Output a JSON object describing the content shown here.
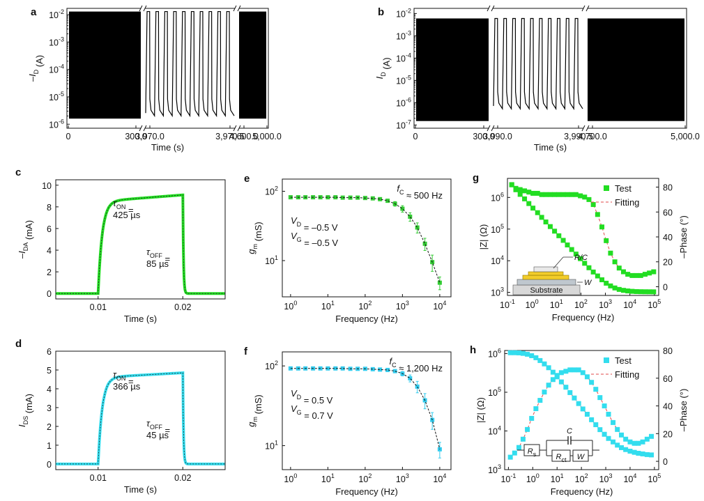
{
  "chart_data": [
    {
      "id": "a",
      "type": "line",
      "panel_label": "a",
      "xlabel": "Time (s)",
      "ylabel_main": "–I",
      "ylabel_sub": "D",
      "ylabel_unit": " (A)",
      "yscale": "log",
      "ylim": [
        1e-06,
        0.01
      ],
      "ytick_bases": [
        "10",
        "10",
        "10",
        "10",
        "10"
      ],
      "ytick_exps": [
        "-6",
        "-5",
        "-4",
        "-3",
        "-2"
      ],
      "segments": [
        {
          "kind": "dense",
          "xticks": [
            "0",
            "300.0"
          ],
          "x_range": [
            0,
            400
          ],
          "high": 0.013,
          "low": 1.6e-06
        },
        {
          "kind": "pulses",
          "xticks": [
            "3,970.0",
            "3,970.5"
          ],
          "x_range": [
            3969.9,
            3970.75
          ],
          "pulse_count": 10,
          "high": 0.013,
          "low": 1.6e-06
        },
        {
          "kind": "dense",
          "xticks": [
            "4,600.0",
            "5,000.0"
          ],
          "x_range": [
            4560,
            5040
          ],
          "high": 0.013,
          "low": 1.6e-06
        }
      ]
    },
    {
      "id": "b",
      "type": "line",
      "panel_label": "b",
      "xlabel": "Time (s)",
      "ylabel_main": "I",
      "ylabel_sub": "D",
      "ylabel_unit": " (A)",
      "yscale": "log",
      "ylim": [
        1e-07,
        0.01
      ],
      "ytick_bases": [
        "10",
        "10",
        "10",
        "10",
        "10",
        "10"
      ],
      "ytick_exps": [
        "-7",
        "-6",
        "-5",
        "-4",
        "-3",
        "-2"
      ],
      "segments": [
        {
          "kind": "dense",
          "xticks": [
            "0",
            "300.0"
          ],
          "x_range": [
            0,
            400
          ],
          "high": 0.006,
          "low": 1.5e-07
        },
        {
          "kind": "pulses",
          "xticks": [
            "3,990.0",
            "3,990.5"
          ],
          "x_range": [
            3989.9,
            3990.75
          ],
          "pulse_count": 10,
          "high": 0.006,
          "low": 4e-07
        },
        {
          "kind": "dense",
          "xticks": [
            "4,700.0",
            "5,000.0"
          ],
          "x_range": [
            4600,
            5040
          ],
          "high": 0.006,
          "low": 1.5e-07
        }
      ]
    },
    {
      "id": "c",
      "type": "line",
      "panel_label": "c",
      "xlabel": "Time (s)",
      "ylabel_main": "–I",
      "ylabel_sub": "DA",
      "ylabel_unit": " (mA)",
      "xlim": [
        0.005,
        0.025
      ],
      "ylim": [
        -0.5,
        10.5
      ],
      "xticks": [
        0.01,
        0.02
      ],
      "xtick_labels": [
        "0.01",
        "0.02"
      ],
      "yticks": [
        0,
        2,
        4,
        6,
        8,
        10
      ],
      "ytick_labels": [
        "0",
        "2",
        "4",
        "6",
        "8",
        "10"
      ],
      "color": "#22dd22",
      "pulse": {
        "t_on": 0.01,
        "t_off": 0.02,
        "plateau_start": 8.5,
        "plateau_end": 9.1,
        "baseline": 0
      },
      "tau_on_label": "τ",
      "tau_on_sub": "ON",
      "tau_on_value": "425 µs",
      "tau_off_label": "τ",
      "tau_off_sub": "OFF",
      "tau_off_value": "85 µs",
      "equals": " ="
    },
    {
      "id": "d",
      "type": "line",
      "panel_label": "d",
      "xlabel": "Time (s)",
      "ylabel_main": "I",
      "ylabel_sub": "DS",
      "ylabel_unit": " (mA)",
      "xlim": [
        0.005,
        0.025
      ],
      "ylim": [
        -0.3,
        6
      ],
      "xticks": [
        0.01,
        0.02
      ],
      "xtick_labels": [
        "0.01",
        "0.02"
      ],
      "yticks": [
        0,
        1,
        2,
        3,
        4,
        5,
        6
      ],
      "ytick_labels": [
        "0",
        "1",
        "2",
        "3",
        "4",
        "5",
        "6"
      ],
      "color": "#33ddee",
      "pulse": {
        "t_on": 0.01,
        "t_off": 0.02,
        "plateau_start": 4.6,
        "plateau_end": 4.85,
        "baseline": 0
      },
      "tau_on_label": "τ",
      "tau_on_sub": "ON",
      "tau_on_value": "366 µs",
      "tau_off_label": "τ",
      "tau_off_sub": "OFF",
      "tau_off_value": "45 µs",
      "equals": " ="
    },
    {
      "id": "e",
      "type": "scatter",
      "panel_label": "e",
      "xlabel": "Frequency (Hz)",
      "ylabel_main": "g",
      "ylabel_sub": "m",
      "ylabel_unit": " (mS)",
      "xscale": "log",
      "yscale": "log",
      "xlim": [
        0.6,
        20000
      ],
      "ylim": [
        3,
        150
      ],
      "xtick_exps": [
        "0",
        "1",
        "2",
        "3",
        "4"
      ],
      "ytick_exps": [
        "1",
        "2"
      ],
      "color": "#33cc33",
      "x": [
        1,
        1.6,
        2.5,
        4,
        6.3,
        10,
        16,
        25,
        40,
        63,
        100,
        160,
        250,
        400,
        630,
        1000,
        1600,
        2500,
        4000,
        6300,
        10000
      ],
      "y": [
        82,
        82,
        82,
        82,
        82,
        82,
        82,
        81,
        81,
        81,
        80,
        79,
        77,
        73,
        66,
        56,
        43,
        30,
        17.5,
        9.5,
        4.8
      ],
      "err": [
        3,
        3,
        3,
        3,
        3,
        3,
        3,
        3,
        3,
        3,
        3,
        3,
        4,
        4,
        5,
        6,
        6,
        5,
        3.5,
        2.5,
        1
      ],
      "annotations": {
        "fc_main": "f",
        "fc_sub": "C",
        "fc_value": " ≈ 500 Hz",
        "vd_main": "V",
        "vd_sub": "D",
        "vd_value": " = –0.5 V",
        "vg_main": "V",
        "vg_sub": "G",
        "vg_value": " = –0.5 V"
      }
    },
    {
      "id": "f",
      "type": "scatter",
      "panel_label": "f",
      "xlabel": "Frequency (Hz)",
      "ylabel_main": "g",
      "ylabel_sub": "m",
      "ylabel_unit": " (mS)",
      "xscale": "log",
      "yscale": "log",
      "xlim": [
        0.6,
        20000
      ],
      "ylim": [
        5,
        150
      ],
      "xtick_exps": [
        "0",
        "1",
        "2",
        "3",
        "4"
      ],
      "ytick_exps": [
        "1",
        "2"
      ],
      "color": "#33ccee",
      "x": [
        1,
        1.6,
        2.5,
        4,
        6.3,
        10,
        16,
        25,
        40,
        63,
        100,
        160,
        250,
        400,
        630,
        1000,
        1600,
        2500,
        4000,
        6300,
        10000
      ],
      "y": [
        93,
        93,
        93,
        93,
        93,
        93,
        93,
        93,
        92,
        92,
        92,
        91,
        90,
        89,
        86,
        80,
        70,
        55,
        37,
        21,
        9
      ],
      "err": [
        3,
        3,
        3,
        3,
        3,
        3,
        3,
        3,
        3,
        3,
        3,
        3,
        3,
        4,
        4,
        5,
        7,
        9,
        8,
        5,
        2
      ],
      "annotations": {
        "fc_main": "f",
        "fc_sub": "C",
        "fc_value": " ≈ 1,200 Hz",
        "vd_main": "V",
        "vd_sub": "D",
        "vd_value": " = 0.5 V",
        "vg_main": "V",
        "vg_sub": "G",
        "vg_value": " = 0.7 V"
      }
    },
    {
      "id": "g",
      "type": "scatter",
      "panel_label": "g",
      "xlabel": "Frequency (Hz)",
      "ylabel": "|Z| (Ω)",
      "y2label": "–Phase (°)",
      "xscale": "log",
      "yscale": "log",
      "xlim": [
        0.1,
        150000
      ],
      "ylim": [
        800,
        4000000
      ],
      "y2lim": [
        -7,
        87
      ],
      "xtick_exps": [
        "-1",
        "0",
        "1",
        "2",
        "3",
        "4",
        "5"
      ],
      "ytick_exps": [
        "3",
        "4",
        "5",
        "6"
      ],
      "y2ticks": [
        0,
        20,
        40,
        60,
        80
      ],
      "y2tick_labels": [
        "0",
        "20",
        "40",
        "60",
        "80"
      ],
      "color": "#22dd22",
      "x": [
        0.15,
        0.22,
        0.33,
        0.5,
        0.75,
        1.1,
        1.7,
        2.5,
        3.7,
        5.6,
        8.4,
        12.6,
        19,
        28,
        42,
        63,
        95,
        142,
        213,
        320,
        480,
        720,
        1080,
        1620,
        2430,
        3650,
        5470,
        8200,
        12300,
        18500,
        27700,
        41600,
        62400,
        93600
      ],
      "z": [
        2500000,
        1750000,
        1250000,
        900000,
        640000,
        460000,
        330000,
        235000,
        168000,
        120000,
        86000,
        61500,
        44000,
        31500,
        22600,
        16200,
        11600,
        8300,
        6000,
        4400,
        3300,
        2500,
        1950,
        1600,
        1380,
        1240,
        1160,
        1110,
        1080,
        1060,
        1050,
        1045,
        1042,
        1040
      ],
      "phase": [
        82,
        79,
        78,
        77,
        76,
        75,
        75,
        74,
        74,
        74,
        74,
        74,
        74,
        74,
        74,
        74,
        73,
        72,
        70,
        66,
        58,
        48,
        37,
        27,
        20,
        15,
        12,
        10,
        9,
        9,
        9,
        10,
        11,
        12
      ],
      "legend_test": "Test",
      "legend_fit": "Fitting",
      "inset_labels": [
        "R/C",
        "W",
        "Substrate"
      ]
    },
    {
      "id": "h",
      "type": "scatter",
      "panel_label": "h",
      "xlabel": "Frequency (Hz)",
      "ylabel": "|Z| (Ω)",
      "y2label": "–Phase (°)",
      "xscale": "log",
      "yscale": "log",
      "xlim": [
        0.07,
        150000
      ],
      "ylim": [
        1000,
        1200000
      ],
      "y2lim": [
        -6,
        80
      ],
      "xtick_exps": [
        "-1",
        "0",
        "1",
        "2",
        "3",
        "4",
        "5"
      ],
      "ytick_exps": [
        "3",
        "4",
        "5",
        "6"
      ],
      "y2ticks": [
        0,
        20,
        40,
        60,
        80
      ],
      "y2tick_labels": [
        "0",
        "20",
        "40",
        "60",
        "80"
      ],
      "color": "#33ddee",
      "x": [
        0.12,
        0.18,
        0.27,
        0.4,
        0.6,
        0.9,
        1.35,
        2,
        3,
        4.5,
        6.8,
        10,
        15,
        23,
        34,
        51,
        77,
        115,
        173,
        260,
        390,
        580,
        880,
        1300,
        2000,
        3000,
        4400,
        6600,
        10000,
        15000,
        22000,
        33000,
        50000,
        75000
      ],
      "z": [
        1050000,
        1050000,
        1040000,
        1010000,
        960000,
        880000,
        780000,
        660000,
        540000,
        430000,
        330000,
        250000,
        185000,
        135000,
        98000,
        71000,
        51000,
        37000,
        27000,
        19500,
        14500,
        10800,
        8200,
        6400,
        5200,
        4300,
        3700,
        3300,
        3000,
        2800,
        2650,
        2550,
        2450,
        2400
      ],
      "phase": [
        3,
        6,
        10,
        16,
        23,
        31,
        38,
        44,
        50,
        55,
        59,
        62,
        64,
        65,
        66,
        66,
        66,
        64,
        61,
        57,
        52,
        46,
        40,
        34,
        28,
        23,
        19,
        16,
        14,
        13,
        13,
        14,
        16,
        18
      ],
      "legend_test": "Test",
      "legend_fit": "Fitting",
      "circuit_labels": {
        "rs_main": "R",
        "rs_sub": "s",
        "c": "C",
        "rct_main": "R",
        "rct_sub": "ct",
        "w": "W"
      }
    }
  ]
}
